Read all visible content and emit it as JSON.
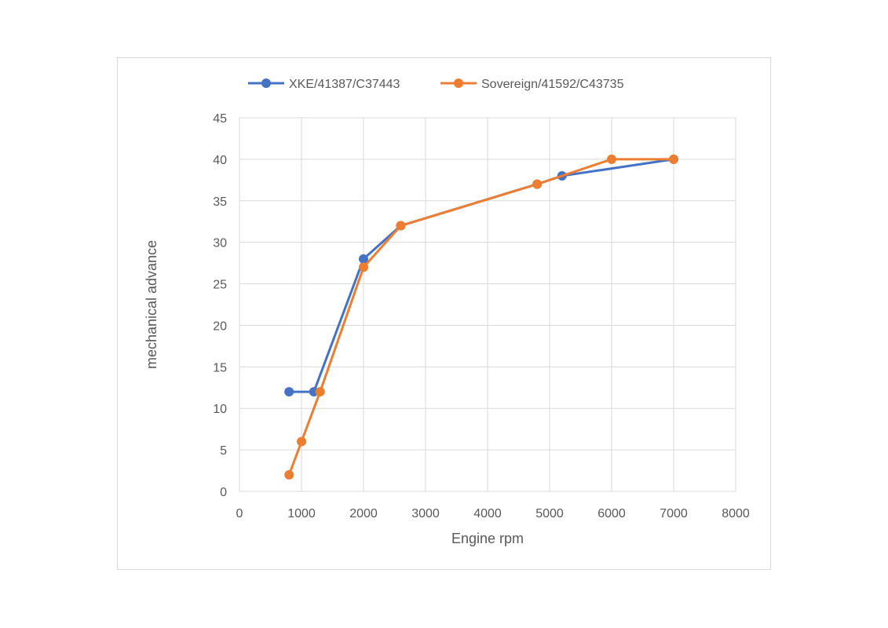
{
  "chart_data": {
    "type": "scatter",
    "xlabel": "Engine rpm",
    "ylabel": "mechanical advance",
    "xlim": [
      0,
      8000
    ],
    "ylim": [
      0,
      45
    ],
    "x_ticks": [
      0,
      1000,
      2000,
      3000,
      4000,
      5000,
      6000,
      7000,
      8000
    ],
    "y_ticks": [
      0,
      5,
      10,
      15,
      20,
      25,
      30,
      35,
      40,
      45
    ],
    "grid": true,
    "legend_position": "top",
    "series": [
      {
        "name": "XKE/41387/C37443",
        "color": "#4472C4",
        "points": [
          [
            800,
            12
          ],
          [
            1200,
            12
          ],
          [
            2000,
            28
          ],
          [
            2600,
            32
          ],
          [
            4800,
            37
          ],
          [
            5200,
            38
          ],
          [
            7000,
            40
          ]
        ]
      },
      {
        "name": "Sovereign/41592/C43735",
        "color": "#ED7D31",
        "points": [
          [
            800,
            2
          ],
          [
            1000,
            6
          ],
          [
            1300,
            12
          ],
          [
            2000,
            27
          ],
          [
            2600,
            32
          ],
          [
            4800,
            37
          ],
          [
            6000,
            40
          ],
          [
            7000,
            40
          ]
        ]
      }
    ]
  }
}
